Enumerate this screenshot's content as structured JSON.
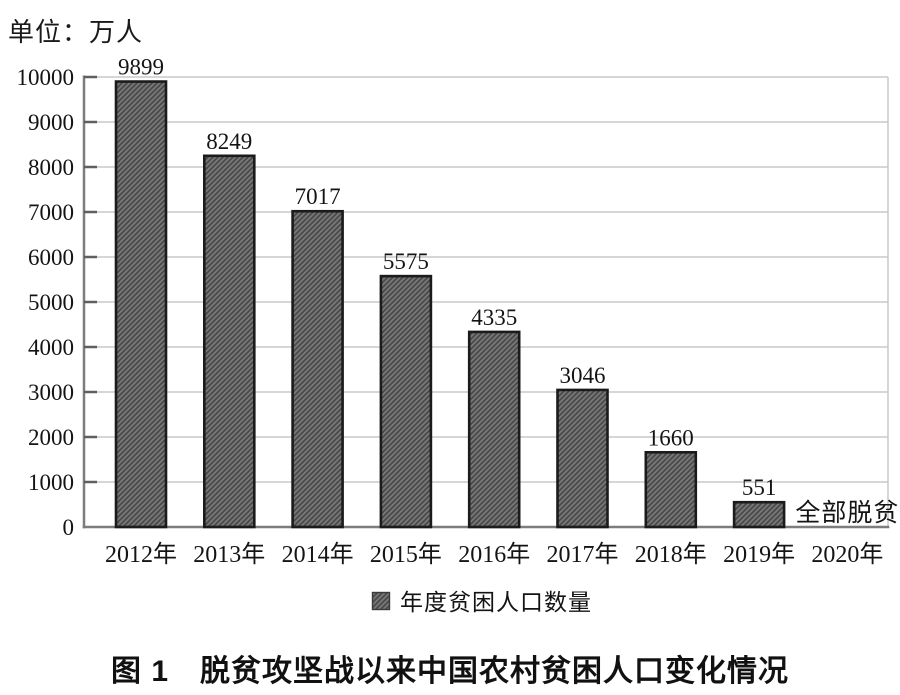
{
  "unit_label": "单位：万人",
  "legend": {
    "swatch": "hatched-gray-square",
    "label": "年度贫困人口数量"
  },
  "caption": "图 1　脱贫攻坚战以来中国农村贫困人口变化情况",
  "chart_data": {
    "type": "bar",
    "title": "",
    "unit": "万人",
    "categories": [
      "2012年",
      "2013年",
      "2014年",
      "2015年",
      "2016年",
      "2017年",
      "2018年",
      "2019年",
      "2020年"
    ],
    "values": [
      9899,
      8249,
      7017,
      5575,
      4335,
      3046,
      1660,
      551,
      null
    ],
    "bar_labels": [
      "9899",
      "8249",
      "7017",
      "5575",
      "4335",
      "3046",
      "1660",
      "551",
      "全部脱贫"
    ],
    "series_name": "年度贫困人口数量",
    "ylim": [
      0,
      10000
    ],
    "ytick_step": 1000,
    "ytick_labels": [
      "0",
      "1000",
      "2000",
      "3000",
      "4000",
      "5000",
      "6000",
      "7000",
      "8000",
      "9000",
      "10000"
    ],
    "grid": "horizontal",
    "legend_position": "bottom-center",
    "annotations": [
      {
        "category": "2020年",
        "text": "全部脱贫"
      }
    ],
    "colors": {
      "bar_fill": "#767676",
      "bar_hatch": "#474747",
      "bar_border": "#1b1b1b",
      "gridline": "#c9c9c9",
      "axis": "#7d7d7d",
      "tick": "#5f5f5f",
      "text": "#141414"
    }
  }
}
